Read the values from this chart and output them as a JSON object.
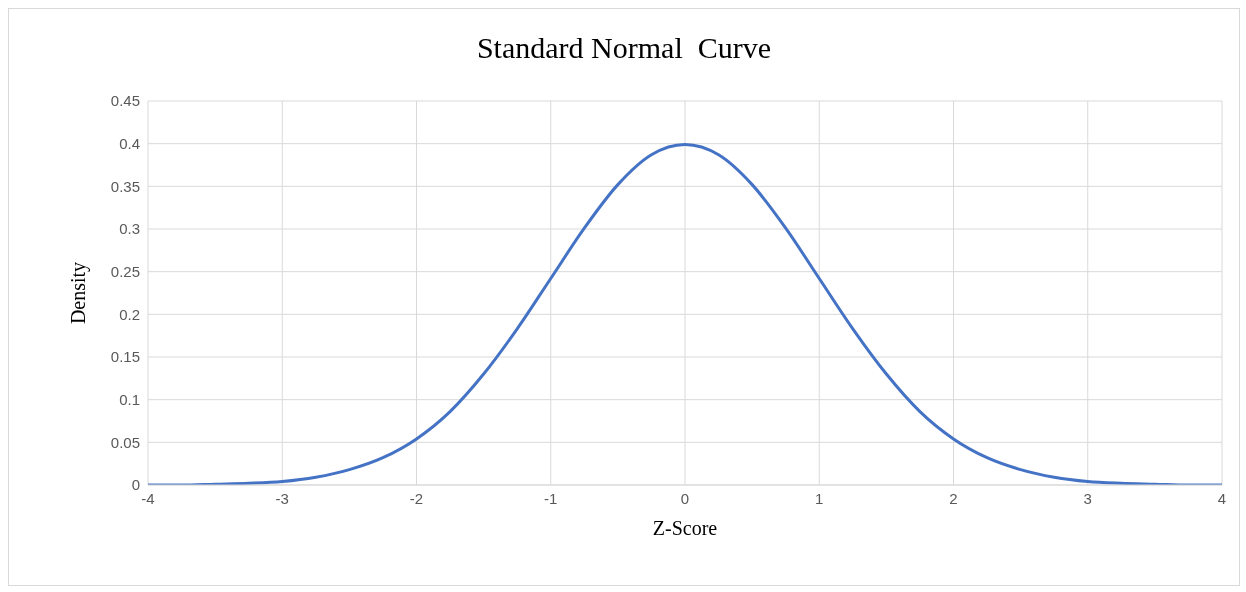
{
  "chart_data": {
    "type": "line",
    "title": "Standard Normal  Curve",
    "xlabel": "Z-Score",
    "ylabel": "Density",
    "x": [
      -4,
      -3.75,
      -3.5,
      -3.25,
      -3,
      -2.75,
      -2.5,
      -2.25,
      -2,
      -1.75,
      -1.5,
      -1.25,
      -1,
      -0.75,
      -0.5,
      -0.25,
      0,
      0.25,
      0.5,
      0.75,
      1,
      1.25,
      1.5,
      1.75,
      2,
      2.25,
      2.5,
      2.75,
      3,
      3.25,
      3.5,
      3.75,
      4
    ],
    "series": [
      {
        "color": "#4472c4",
        "values": [
          0,
          0,
          0.001,
          0.002,
          0.004,
          0.009,
          0.018,
          0.032,
          0.054,
          0.086,
          0.13,
          0.183,
          0.242,
          0.301,
          0.352,
          0.387,
          0.399,
          0.387,
          0.352,
          0.301,
          0.242,
          0.183,
          0.13,
          0.086,
          0.054,
          0.032,
          0.018,
          0.009,
          0.004,
          0.002,
          0.001,
          0,
          0
        ]
      }
    ],
    "xlim": [
      -4,
      4
    ],
    "xticks": [
      -4,
      -3,
      -2,
      -1,
      0,
      1,
      2,
      3,
      4
    ],
    "ylim": [
      0,
      0.45
    ],
    "yticks": [
      0,
      0.05,
      0.1,
      0.15,
      0.2,
      0.25,
      0.3,
      0.35,
      0.4,
      0.45
    ],
    "grid": true,
    "marker": "none",
    "line_style": "solid"
  }
}
